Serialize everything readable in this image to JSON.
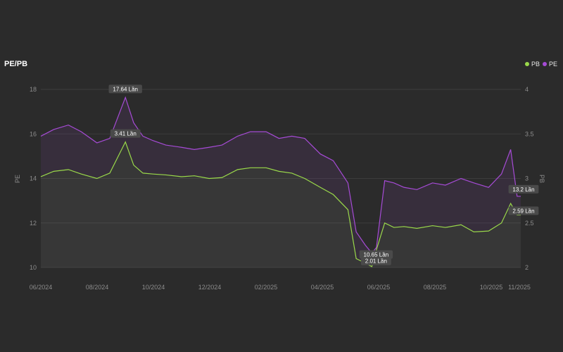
{
  "title": "PE/PB",
  "legend": [
    {
      "name": "PB",
      "color": "#9ad94a"
    },
    {
      "name": "PE",
      "color": "#a64bd6"
    }
  ],
  "chart_data": {
    "type": "line",
    "title": "PE/PB",
    "x_ticks": [
      "06/2024",
      "08/2024",
      "10/2024",
      "12/2024",
      "02/2025",
      "04/2025",
      "06/2025",
      "08/2025",
      "10/2025",
      "11/2025"
    ],
    "y_left": {
      "label": "PE",
      "lim": [
        10,
        18
      ],
      "ticks": [
        "10",
        "12",
        "14",
        "16",
        "18"
      ]
    },
    "y_right": {
      "label": "PB",
      "lim": [
        2,
        4
      ],
      "ticks": [
        "2",
        "2.5",
        "3",
        "3.5",
        "4"
      ]
    },
    "grid": true,
    "legend_position": "top-right",
    "series": [
      {
        "name": "PE",
        "axis": "left",
        "color": "#a64bd6",
        "x": [
          "2024-06-01",
          "2024-06-15",
          "2024-07-01",
          "2024-07-15",
          "2024-08-01",
          "2024-08-15",
          "2024-09-01",
          "2024-09-10",
          "2024-09-20",
          "2024-10-01",
          "2024-10-15",
          "2024-11-01",
          "2024-11-15",
          "2024-12-01",
          "2024-12-15",
          "2025-01-01",
          "2025-01-15",
          "2025-02-01",
          "2025-02-15",
          "2025-03-01",
          "2025-03-15",
          "2025-04-01",
          "2025-04-15",
          "2025-05-01",
          "2025-05-10",
          "2025-05-20",
          "2025-05-27",
          "2025-06-01",
          "2025-06-10",
          "2025-06-20",
          "2025-07-01",
          "2025-07-15",
          "2025-08-01",
          "2025-08-15",
          "2025-09-01",
          "2025-09-15",
          "2025-10-01",
          "2025-10-15",
          "2025-10-25",
          "2025-11-01",
          "2025-11-05"
        ],
        "y": [
          15.9,
          16.2,
          16.4,
          16.1,
          15.6,
          15.8,
          17.64,
          16.5,
          15.9,
          15.7,
          15.5,
          15.4,
          15.3,
          15.4,
          15.5,
          15.9,
          16.1,
          16.1,
          15.8,
          15.9,
          15.8,
          15.1,
          14.8,
          13.8,
          11.6,
          11.0,
          10.65,
          10.9,
          13.9,
          13.8,
          13.6,
          13.5,
          13.8,
          13.7,
          14.0,
          13.8,
          13.6,
          14.2,
          15.3,
          13.2,
          13.2
        ]
      },
      {
        "name": "PB",
        "axis": "right",
        "color": "#9ad94a",
        "x": [
          "2024-06-01",
          "2024-06-15",
          "2024-07-01",
          "2024-07-15",
          "2024-08-01",
          "2024-08-15",
          "2024-09-01",
          "2024-09-10",
          "2024-09-20",
          "2024-10-01",
          "2024-10-15",
          "2024-11-01",
          "2024-11-15",
          "2024-12-01",
          "2024-12-15",
          "2025-01-01",
          "2025-01-15",
          "2025-02-01",
          "2025-02-15",
          "2025-03-01",
          "2025-03-15",
          "2025-04-01",
          "2025-04-15",
          "2025-05-01",
          "2025-05-10",
          "2025-05-20",
          "2025-05-27",
          "2025-06-01",
          "2025-06-10",
          "2025-06-20",
          "2025-07-01",
          "2025-07-15",
          "2025-08-01",
          "2025-08-15",
          "2025-09-01",
          "2025-09-15",
          "2025-10-01",
          "2025-10-15",
          "2025-10-25",
          "2025-11-01",
          "2025-11-05"
        ],
        "y": [
          3.02,
          3.08,
          3.1,
          3.05,
          3.0,
          3.06,
          3.41,
          3.15,
          3.06,
          3.05,
          3.04,
          3.02,
          3.03,
          3.0,
          3.01,
          3.1,
          3.12,
          3.12,
          3.08,
          3.06,
          3.0,
          2.9,
          2.82,
          2.65,
          2.1,
          2.05,
          2.01,
          2.2,
          2.5,
          2.45,
          2.46,
          2.44,
          2.47,
          2.45,
          2.48,
          2.4,
          2.41,
          2.5,
          2.72,
          2.59,
          2.59
        ]
      }
    ],
    "annotations": [
      {
        "series": "PE",
        "text": "17.64 Lần"
      },
      {
        "series": "PB",
        "text": "3.41 Lần"
      },
      {
        "series": "PE",
        "text": "10.65 Lần"
      },
      {
        "series": "PB",
        "text": "2.01 Lần"
      },
      {
        "series": "PE",
        "text": "13.2 Lần"
      },
      {
        "series": "PB",
        "text": "2.59 Lần"
      }
    ]
  }
}
